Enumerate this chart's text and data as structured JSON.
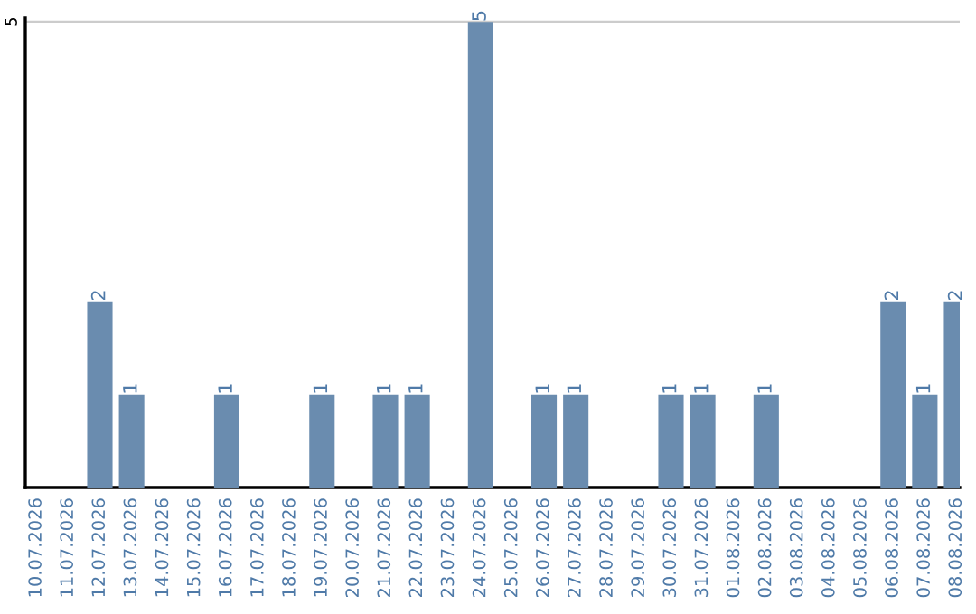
{
  "chart_data": {
    "type": "bar",
    "categories": [
      "10.07.2026",
      "11.07.2026",
      "12.07.2026",
      "13.07.2026",
      "14.07.2026",
      "15.07.2026",
      "16.07.2026",
      "17.07.2026",
      "18.07.2026",
      "19.07.2026",
      "20.07.2026",
      "21.07.2026",
      "22.07.2026",
      "23.07.2026",
      "24.07.2026",
      "25.07.2026",
      "26.07.2026",
      "27.07.2026",
      "28.07.2026",
      "29.07.2026",
      "30.07.2026",
      "31.07.2026",
      "01.08.2026",
      "02.08.2026",
      "03.08.2026",
      "04.08.2026",
      "05.08.2026",
      "06.08.2026",
      "07.08.2026",
      "08.08.2026"
    ],
    "values": [
      0,
      0,
      2,
      1,
      0,
      0,
      1,
      0,
      0,
      1,
      0,
      1,
      1,
      0,
      5,
      0,
      1,
      1,
      0,
      0,
      1,
      1,
      0,
      1,
      0,
      0,
      0,
      2,
      1,
      2
    ],
    "value_labels": [
      null,
      null,
      "2",
      "1",
      null,
      null,
      "1",
      null,
      null,
      "1",
      null,
      "1",
      "1",
      null,
      "5",
      null,
      "1",
      "1",
      null,
      null,
      "1",
      "1",
      null,
      "1",
      null,
      null,
      null,
      "2",
      "1",
      "2"
    ],
    "color": "#6a8caf",
    "ylim": [
      0,
      5.04
    ],
    "yticks": [
      {
        "value": 0,
        "label": null
      },
      5
    ],
    "grid": "y"
  }
}
